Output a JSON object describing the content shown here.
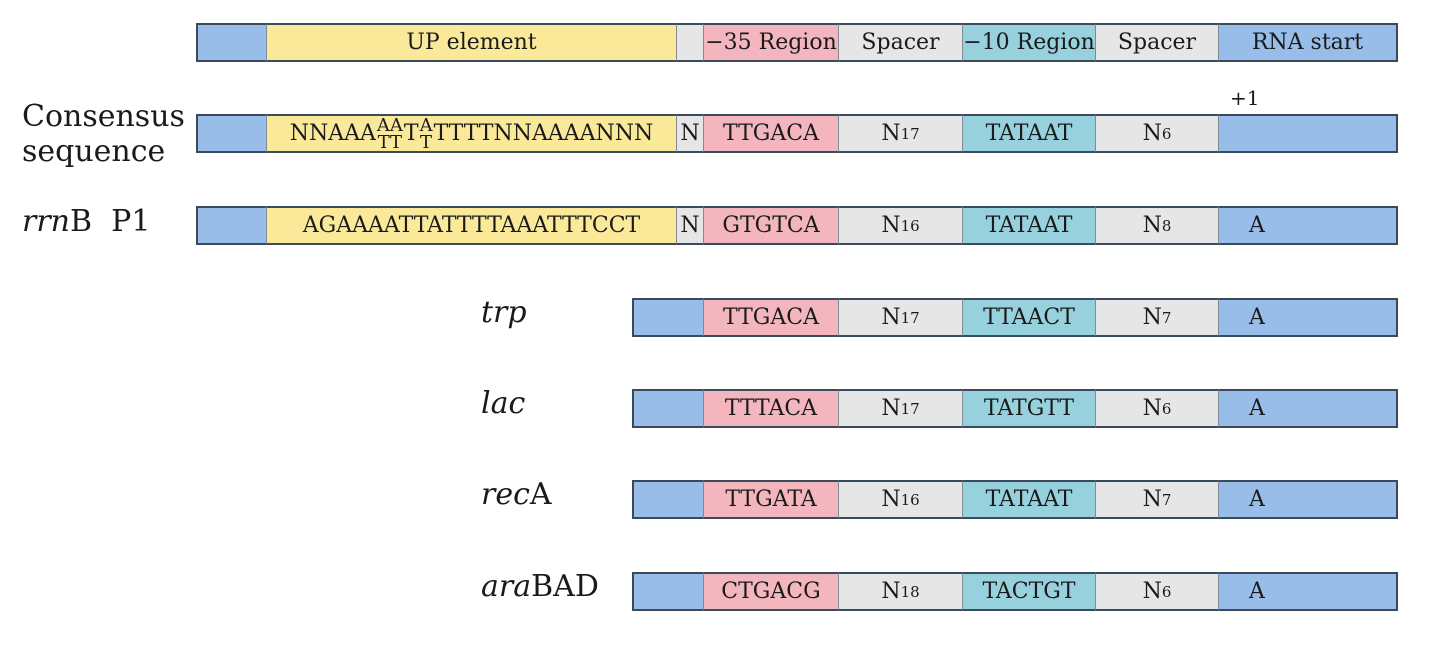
{
  "header": {
    "up": "UP element",
    "minus35": "−35 Region",
    "spacer1": "Spacer",
    "minus10": "−10 Region",
    "spacer2": "Spacer",
    "rna_start": "RNA start"
  },
  "plus1": "+1",
  "consensus": {
    "label_line1": "Consensus",
    "label_line2": "sequence",
    "up_prefix": "NNAAA",
    "up_stack1_top": "AA",
    "up_stack1_bottom": "TT",
    "up_mid": "T",
    "up_stack2_top": "A",
    "up_stack2_bottom": "T",
    "up_suffix": "TTTTNNAAAANNN",
    "n": "N",
    "minus35": "TTGACA",
    "spacer_base": "N",
    "spacer_sub": "17",
    "minus10": "TATAAT",
    "spacer2_base": "N",
    "spacer2_sub": "6",
    "start": ""
  },
  "rrnb": {
    "label_italic": "rrn",
    "label_rest": "B  P1",
    "up": "AGAAAATTATTTTAAATTTCCT",
    "n": "N",
    "minus35": "GTGTCA",
    "spacer_base": "N",
    "spacer_sub": "16",
    "minus10": "TATAAT",
    "spacer2_base": "N",
    "spacer2_sub": "8",
    "start": "A"
  },
  "promoters": [
    {
      "label_italic": "trp",
      "label_rest": "",
      "minus35": "TTGACA",
      "spacer_base": "N",
      "spacer_sub": "17",
      "minus10": "TTAACT",
      "spacer2_base": "N",
      "spacer2_sub": "7",
      "start": "A"
    },
    {
      "label_italic": "lac",
      "label_rest": "",
      "minus35": "TTTACA",
      "spacer_base": "N",
      "spacer_sub": "17",
      "minus10": "TATGTT",
      "spacer2_base": "N",
      "spacer2_sub": "6",
      "start": "A"
    },
    {
      "label_italic": "rec",
      "label_rest": "A",
      "minus35": "TTGATA",
      "spacer_base": "N",
      "spacer_sub": "16",
      "minus10": "TATAAT",
      "spacer2_base": "N",
      "spacer2_sub": "7",
      "start": "A"
    },
    {
      "label_italic": "ara",
      "label_rest": "BAD",
      "minus35": "CTGACG",
      "spacer_base": "N",
      "spacer_sub": "18",
      "minus10": "TACTGT",
      "spacer2_base": "N",
      "spacer2_sub": "6",
      "start": "A"
    }
  ],
  "colors": {
    "flank": "#98bde9",
    "up_element": "#fbe99a",
    "spacer": "#e6e6e6",
    "minus35": "#f3b6bf",
    "minus10": "#97d1de"
  }
}
